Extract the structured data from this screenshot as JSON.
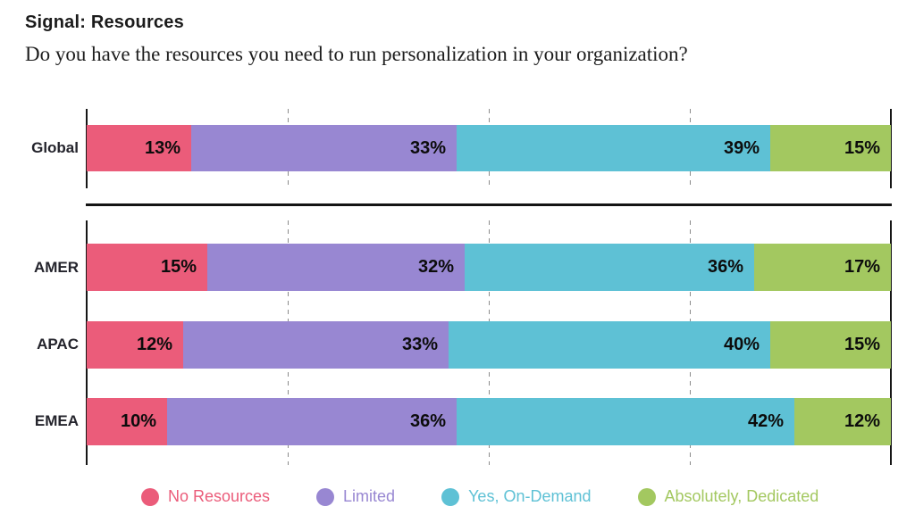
{
  "chart_data": {
    "type": "bar",
    "stacked": true,
    "orientation": "horizontal",
    "title": "Signal: Resources",
    "subtitle": "Do you have the resources you need to run personalization in your organization?",
    "unit": "%",
    "xlim": [
      0,
      100
    ],
    "gridlines_percent": [
      25,
      50,
      75
    ],
    "grid_style": "dashed-vertical",
    "legend_position": "bottom",
    "categories": [
      "Global",
      "AMER",
      "APAC",
      "EMEA"
    ],
    "series": [
      {
        "name": "No Resources",
        "color": "#EB5C7A",
        "values": [
          13,
          15,
          12,
          10
        ]
      },
      {
        "name": "Limited",
        "color": "#9887D2",
        "values": [
          33,
          32,
          33,
          36
        ]
      },
      {
        "name": "Yes, On-Demand",
        "color": "#5EC1D5",
        "values": [
          39,
          36,
          40,
          42
        ]
      },
      {
        "name": "Absolutely, Dedicated",
        "color": "#A3C860",
        "values": [
          15,
          17,
          15,
          12
        ]
      }
    ],
    "groups": [
      [
        "Global"
      ],
      [
        "AMER",
        "APAC",
        "EMEA"
      ]
    ]
  }
}
